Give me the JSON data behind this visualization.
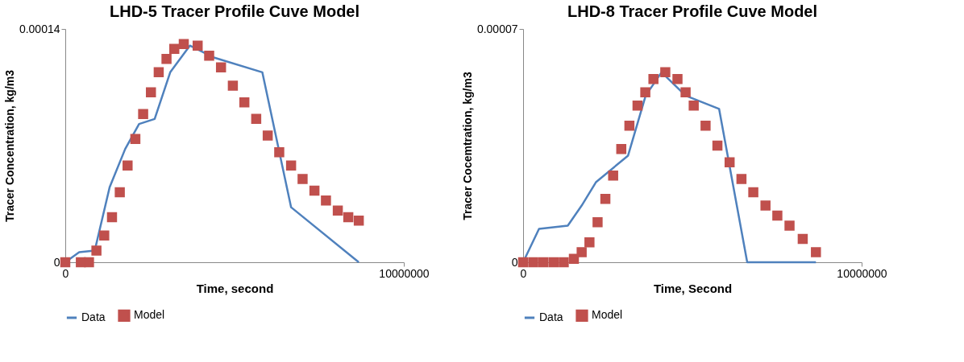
{
  "chart_data": [
    {
      "type": "line",
      "title": "LHD-5 Tracer Profile Cuve Model",
      "xlabel": "Time, second",
      "ylabel": "Tracer Concentration, kg/m3",
      "xlim": [
        0,
        10000000
      ],
      "xticks": [
        0,
        10000000
      ],
      "ylim": [
        0,
        0.00014
      ],
      "yticks": [
        0,
        {
          "value": 0.00014,
          "label": "0.00014"
        }
      ],
      "legend": "bottom",
      "series": [
        {
          "name": "Data",
          "type": "line",
          "color": "#4f81bd",
          "x": [
            0,
            410000,
            870000,
            1310000,
            1770000,
            2180000,
            2640000,
            3100000,
            3680000,
            4370000,
            5820000,
            6670000,
            8670000
          ],
          "values": [
            0,
            6e-06,
            7e-06,
            4.5e-05,
            6.8e-05,
            8.3e-05,
            8.6e-05,
            0.000114,
            0.00013,
            0.000123,
            0.000114,
            3.3e-05,
            0
          ]
        },
        {
          "name": "Model",
          "type": "scatter",
          "marker": "square",
          "color": "#c0504d",
          "x": [
            0,
            460000,
            700000,
            920000,
            1150000,
            1380000,
            1610000,
            1840000,
            2070000,
            2300000,
            2530000,
            2760000,
            2990000,
            3220000,
            3500000,
            3910000,
            4250000,
            4600000,
            4950000,
            5290000,
            5640000,
            5980000,
            6320000,
            6670000,
            7010000,
            7360000,
            7700000,
            8050000,
            8360000,
            8670000
          ],
          "values": [
            0,
            0,
            0,
            7e-06,
            1.6e-05,
            2.7e-05,
            4.2e-05,
            5.8e-05,
            7.4e-05,
            8.9e-05,
            0.000102,
            0.000114,
            0.000122,
            0.000128,
            0.000131,
            0.00013,
            0.000124,
            0.000117,
            0.000106,
            9.6e-05,
            8.6e-05,
            7.6e-05,
            6.6e-05,
            5.8e-05,
            5e-05,
            4.3e-05,
            3.7e-05,
            3.1e-05,
            2.7e-05,
            2.5e-05
          ]
        }
      ]
    },
    {
      "type": "line",
      "title": "LHD-8 Tracer Profile Cuve Model",
      "xlabel": "Time, Second",
      "ylabel": "Tracer Cocemtration, kg/m3",
      "xlim": [
        0,
        10000000
      ],
      "xticks": [
        0,
        10000000
      ],
      "ylim": [
        0,
        7e-05
      ],
      "yticks": [
        0,
        {
          "value": 7e-05,
          "label": "0.00007"
        }
      ],
      "legend": "bottom",
      "series": [
        {
          "name": "Data",
          "type": "line",
          "color": "#4f81bd",
          "x": [
            0,
            470000,
            1320000,
            1730000,
            2150000,
            3100000,
            3620000,
            4090000,
            4800000,
            5790000,
            6620000,
            8650000
          ],
          "values": [
            0,
            1e-05,
            1.1e-05,
            1.7e-05,
            2.4e-05,
            3.2e-05,
            5e-05,
            5.7e-05,
            5e-05,
            4.6e-05,
            0,
            0
          ]
        },
        {
          "name": "Model",
          "type": "scatter",
          "marker": "square",
          "color": "#c0504d",
          "x": [
            0,
            300000,
            600000,
            900000,
            1200000,
            1500000,
            1730000,
            1960000,
            2200000,
            2430000,
            2660000,
            2900000,
            3140000,
            3380000,
            3610000,
            3850000,
            4200000,
            4560000,
            4800000,
            5040000,
            5390000,
            5740000,
            6100000,
            6450000,
            6800000,
            7160000,
            7510000,
            7870000,
            8260000,
            8650000
          ],
          "values": [
            0,
            0,
            0,
            0,
            0,
            1e-06,
            3e-06,
            6e-06,
            1.2e-05,
            1.9e-05,
            2.6e-05,
            3.4e-05,
            4.1e-05,
            4.7e-05,
            5.1e-05,
            5.5e-05,
            5.7e-05,
            5.5e-05,
            5.1e-05,
            4.7e-05,
            4.1e-05,
            3.5e-05,
            3e-05,
            2.5e-05,
            2.1e-05,
            1.7e-05,
            1.4e-05,
            1.1e-05,
            7e-06,
            3e-06
          ]
        }
      ]
    }
  ]
}
